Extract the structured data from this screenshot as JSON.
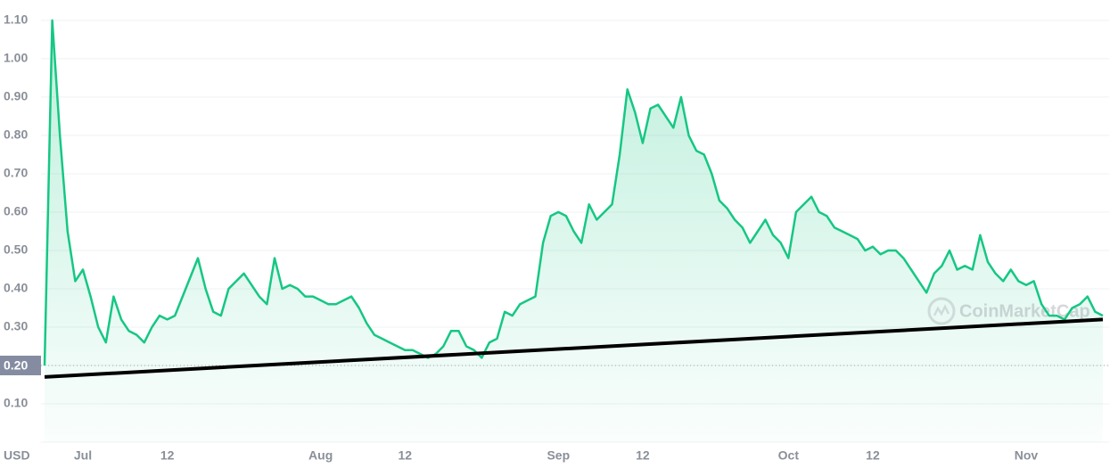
{
  "chart_data": {
    "type": "line",
    "color": "#16c784",
    "grid": true,
    "y_unit": "USD",
    "watermark": "CoinMarketCap",
    "reference_line": 0.2,
    "ylim": [
      0,
      1.13
    ],
    "yticks": [
      {
        "value": 0.1,
        "label": "0.10"
      },
      {
        "value": 0.2,
        "label": "0.20"
      },
      {
        "value": 0.3,
        "label": "0.30"
      },
      {
        "value": 0.4,
        "label": "0.40"
      },
      {
        "value": 0.5,
        "label": "0.50"
      },
      {
        "value": 0.6,
        "label": "0.60"
      },
      {
        "value": 0.7,
        "label": "0.70"
      },
      {
        "value": 0.8,
        "label": "0.80"
      },
      {
        "value": 0.9,
        "label": "0.90"
      },
      {
        "value": 1.0,
        "label": "1.00"
      },
      {
        "value": 1.1,
        "label": "1.10"
      }
    ],
    "xticks": [
      {
        "value": "Jul 1",
        "label": "Jul"
      },
      {
        "value": "Jul 12",
        "label": "12"
      },
      {
        "value": "Aug 1",
        "label": "Aug"
      },
      {
        "value": "Aug 12",
        "label": "12"
      },
      {
        "value": "Sep 1",
        "label": "Sep"
      },
      {
        "value": "Sep 12",
        "label": "12"
      },
      {
        "value": "Oct 1",
        "label": "Oct"
      },
      {
        "value": "Oct 12",
        "label": "12"
      },
      {
        "value": "Nov 1",
        "label": "Nov"
      }
    ],
    "x": [
      "Jun 26",
      "Jun 27",
      "Jun 28",
      "Jun 29",
      "Jun 30",
      "Jul 1",
      "Jul 2",
      "Jul 3",
      "Jul 4",
      "Jul 5",
      "Jul 6",
      "Jul 7",
      "Jul 8",
      "Jul 9",
      "Jul 10",
      "Jul 11",
      "Jul 12",
      "Jul 13",
      "Jul 14",
      "Jul 15",
      "Jul 16",
      "Jul 17",
      "Jul 18",
      "Jul 19",
      "Jul 20",
      "Jul 21",
      "Jul 22",
      "Jul 23",
      "Jul 24",
      "Jul 25",
      "Jul 26",
      "Jul 27",
      "Jul 28",
      "Jul 29",
      "Jul 30",
      "Jul 31",
      "Aug 1",
      "Aug 2",
      "Aug 3",
      "Aug 4",
      "Aug 5",
      "Aug 6",
      "Aug 7",
      "Aug 8",
      "Aug 9",
      "Aug 10",
      "Aug 11",
      "Aug 12",
      "Aug 13",
      "Aug 14",
      "Aug 15",
      "Aug 16",
      "Aug 17",
      "Aug 18",
      "Aug 19",
      "Aug 20",
      "Aug 21",
      "Aug 22",
      "Aug 23",
      "Aug 24",
      "Aug 25",
      "Aug 26",
      "Aug 27",
      "Aug 28",
      "Aug 29",
      "Aug 30",
      "Aug 31",
      "Sep 1",
      "Sep 2",
      "Sep 3",
      "Sep 4",
      "Sep 5",
      "Sep 6",
      "Sep 7",
      "Sep 8",
      "Sep 9",
      "Sep 10",
      "Sep 11",
      "Sep 12",
      "Sep 13",
      "Sep 14",
      "Sep 15",
      "Sep 16",
      "Sep 17",
      "Sep 18",
      "Sep 19",
      "Sep 20",
      "Sep 21",
      "Sep 22",
      "Sep 23",
      "Sep 24",
      "Sep 25",
      "Sep 26",
      "Sep 27",
      "Sep 28",
      "Sep 29",
      "Sep 30",
      "Oct 1",
      "Oct 2",
      "Oct 3",
      "Oct 4",
      "Oct 5",
      "Oct 6",
      "Oct 7",
      "Oct 8",
      "Oct 9",
      "Oct 10",
      "Oct 11",
      "Oct 12",
      "Oct 13",
      "Oct 14",
      "Oct 15",
      "Oct 16",
      "Oct 17",
      "Oct 18",
      "Oct 19",
      "Oct 20",
      "Oct 21",
      "Oct 22",
      "Oct 23",
      "Oct 24",
      "Oct 25",
      "Oct 26",
      "Oct 27",
      "Oct 28",
      "Oct 29",
      "Oct 30",
      "Oct 31",
      "Nov 1",
      "Nov 2",
      "Nov 3",
      "Nov 4",
      "Nov 5",
      "Nov 6",
      "Nov 7",
      "Nov 8",
      "Nov 9",
      "Nov 10",
      "Nov 11"
    ],
    "values": [
      0.2,
      1.1,
      0.8,
      0.55,
      0.42,
      0.45,
      0.38,
      0.3,
      0.26,
      0.38,
      0.32,
      0.29,
      0.28,
      0.26,
      0.3,
      0.33,
      0.32,
      0.33,
      0.38,
      0.43,
      0.48,
      0.4,
      0.34,
      0.33,
      0.4,
      0.42,
      0.44,
      0.41,
      0.38,
      0.36,
      0.48,
      0.4,
      0.41,
      0.4,
      0.38,
      0.38,
      0.37,
      0.36,
      0.36,
      0.37,
      0.38,
      0.35,
      0.31,
      0.28,
      0.27,
      0.26,
      0.25,
      0.24,
      0.24,
      0.23,
      0.22,
      0.23,
      0.25,
      0.29,
      0.29,
      0.25,
      0.24,
      0.22,
      0.26,
      0.27,
      0.34,
      0.33,
      0.36,
      0.37,
      0.38,
      0.52,
      0.59,
      0.6,
      0.59,
      0.55,
      0.52,
      0.62,
      0.58,
      0.6,
      0.62,
      0.75,
      0.92,
      0.86,
      0.78,
      0.87,
      0.88,
      0.85,
      0.82,
      0.9,
      0.8,
      0.76,
      0.75,
      0.7,
      0.63,
      0.61,
      0.58,
      0.56,
      0.52,
      0.55,
      0.58,
      0.54,
      0.52,
      0.48,
      0.6,
      0.62,
      0.64,
      0.6,
      0.59,
      0.56,
      0.55,
      0.54,
      0.53,
      0.5,
      0.51,
      0.49,
      0.5,
      0.5,
      0.48,
      0.45,
      0.42,
      0.39,
      0.44,
      0.46,
      0.5,
      0.45,
      0.46,
      0.45,
      0.54,
      0.47,
      0.44,
      0.42,
      0.45,
      0.42,
      0.41,
      0.42,
      0.36,
      0.33,
      0.33,
      0.32,
      0.35,
      0.36,
      0.38,
      0.34,
      0.33
    ],
    "trendline": {
      "x": [
        "Jun 26",
        "Nov 11"
      ],
      "values": [
        0.17,
        0.32
      ]
    }
  }
}
